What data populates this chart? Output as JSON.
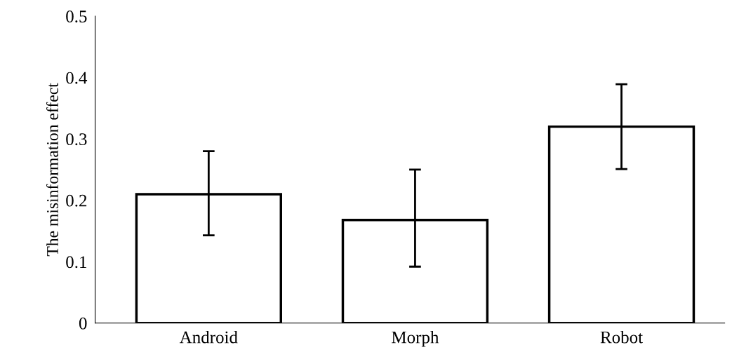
{
  "chart_data": {
    "type": "bar",
    "ylabel": "The misinformation effect",
    "categories": [
      "Android",
      "Morph",
      "Robot"
    ],
    "values": [
      0.21,
      0.168,
      0.32
    ],
    "errors": [
      [
        0.143,
        0.28
      ],
      [
        0.092,
        0.25
      ],
      [
        0.251,
        0.389
      ]
    ],
    "color": "#ffffff",
    "ylim": [
      0,
      0.5
    ],
    "yticks": [
      {
        "value": 0,
        "label": "0"
      },
      0.1,
      0.2,
      0.3,
      0.4,
      0.5
    ],
    "grid": false,
    "legend": false
  }
}
